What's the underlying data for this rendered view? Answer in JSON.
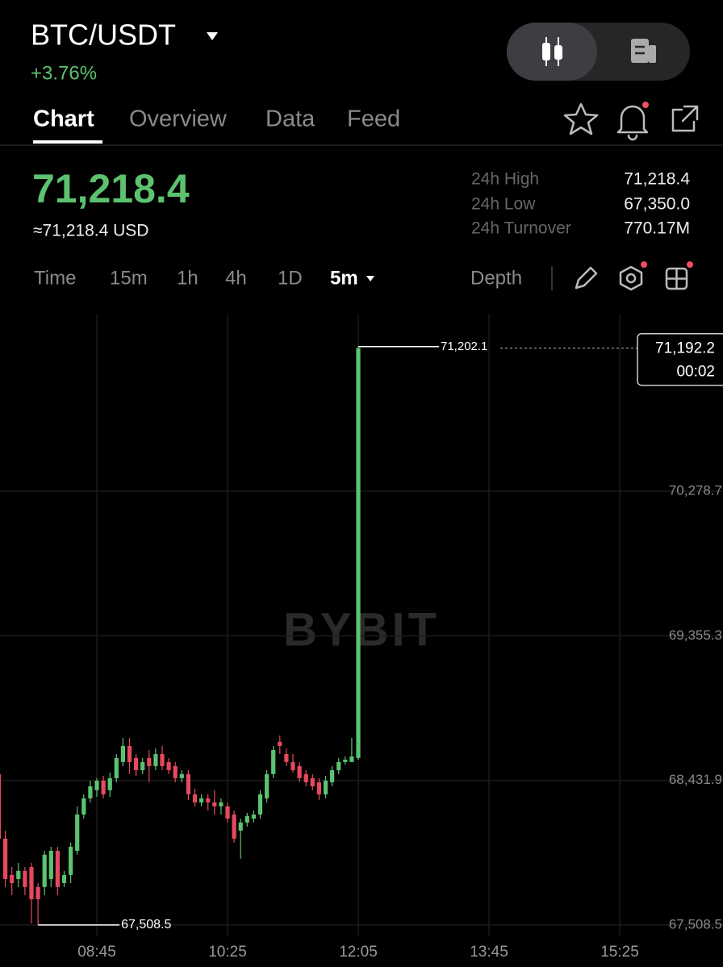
{
  "header": {
    "pair": "BTC/USDT",
    "change": "+3.76%",
    "tabs": [
      "Chart",
      "Overview",
      "Data",
      "Feed"
    ]
  },
  "price": {
    "last": "71,218.4",
    "usd": "≈71,218.4 USD",
    "stats": [
      {
        "label": "24h High",
        "value": "71,218.4"
      },
      {
        "label": "24h Low",
        "value": "67,350.0"
      },
      {
        "label": "24h Turnover",
        "value": "770.17M"
      }
    ]
  },
  "intervals": [
    "Time",
    "15m",
    "1h",
    "4h",
    "1D",
    "5m"
  ],
  "depth": "Depth",
  "chart_data": {
    "type": "candlestick",
    "watermark": "BYBIT",
    "up_color": "#5cc26f",
    "down_color": "#e5495e",
    "grid": true,
    "open": [
      68472,
      68060,
      67828,
      67802,
      67854,
      67879,
      67751,
      67751,
      67802,
      67982,
      67776,
      67828,
      67982,
      68214,
      68317,
      68369,
      68430,
      68369,
      68446,
      68549,
      68652,
      68575,
      68497,
      68575,
      68523,
      68600,
      68549,
      68523,
      68446,
      68472,
      68343,
      68291,
      68317,
      68291,
      68266,
      68266,
      68214,
      68111,
      68163,
      68188,
      68214,
      68317,
      68472,
      68678,
      68600,
      68549,
      68523,
      68472,
      68446,
      68420,
      68343,
      68420,
      68497,
      68549,
      68549,
      68575
    ],
    "high": [
      68575,
      68111,
      67879,
      67905,
      67879,
      67905,
      67776,
      67982,
      68008,
      68008,
      67854,
      68034,
      68266,
      68343,
      68430,
      68446,
      68461,
      68482,
      68600,
      68703,
      68703,
      68600,
      68575,
      68626,
      68636,
      68652,
      68575,
      68549,
      68497,
      68497,
      68379,
      68343,
      68343,
      68369,
      68317,
      68291,
      68240,
      68188,
      68224,
      68240,
      68369,
      68497,
      68652,
      68719,
      68636,
      68600,
      68549,
      68497,
      68472,
      68446,
      68461,
      68523,
      68575,
      68585,
      68703,
      71202.1
    ],
    "low": [
      67957,
      67751,
      67699,
      67751,
      67699,
      67519,
      67508.5,
      67699,
      67751,
      67699,
      67751,
      67776,
      67957,
      68188,
      68291,
      68327,
      68317,
      68327,
      68420,
      68523,
      68472,
      68461,
      68472,
      68420,
      68497,
      68497,
      68472,
      68420,
      68420,
      68307,
      68266,
      68266,
      68240,
      68214,
      68214,
      68163,
      68034,
      67931,
      68137,
      68163,
      68188,
      68291,
      68446,
      68600,
      68523,
      68482,
      68420,
      68394,
      68369,
      68307,
      68317,
      68394,
      68472,
      68533,
      68549,
      68564
    ],
    "close": [
      68060,
      67802,
      67776,
      67854,
      67751,
      67673,
      67673,
      67957,
      67982,
      67751,
      67828,
      68008,
      68214,
      68317,
      68394,
      68430,
      68343,
      68446,
      68575,
      68652,
      68549,
      68497,
      68549,
      68523,
      68600,
      68523,
      68497,
      68446,
      68472,
      68343,
      68291,
      68317,
      68291,
      68266,
      68291,
      68188,
      68060,
      68163,
      68204,
      68214,
      68343,
      68472,
      68626,
      68652,
      68549,
      68497,
      68446,
      68420,
      68394,
      68343,
      68430,
      68497,
      68549,
      68564,
      68585,
      71192.2
    ],
    "xlim": [
      0.185,
      110.8
    ],
    "xticks": [
      {
        "value": 15,
        "label": "08:45"
      },
      {
        "value": 35,
        "label": "10:25"
      },
      {
        "value": 55,
        "label": "12:05"
      },
      {
        "value": 75,
        "label": "13:45"
      },
      {
        "value": 95,
        "label": "15:25"
      }
    ],
    "ylim": [
      67441,
      71407
    ],
    "yticks": [
      {
        "value": 67508.5,
        "label": "67,508.5"
      },
      {
        "value": 68431.9,
        "label": "68,431.9"
      },
      {
        "value": 69355.3,
        "label": "69,355.3"
      },
      {
        "value": 70278.7,
        "label": "70,278.7"
      }
    ],
    "high_marker": {
      "value": 71202.1,
      "label": "71,202.1"
    },
    "low_marker": {
      "value": 67508.5,
      "label": "67,508.5"
    },
    "last_price": {
      "value": 71192.2,
      "label": "71,192.2",
      "countdown": "00:02"
    }
  }
}
